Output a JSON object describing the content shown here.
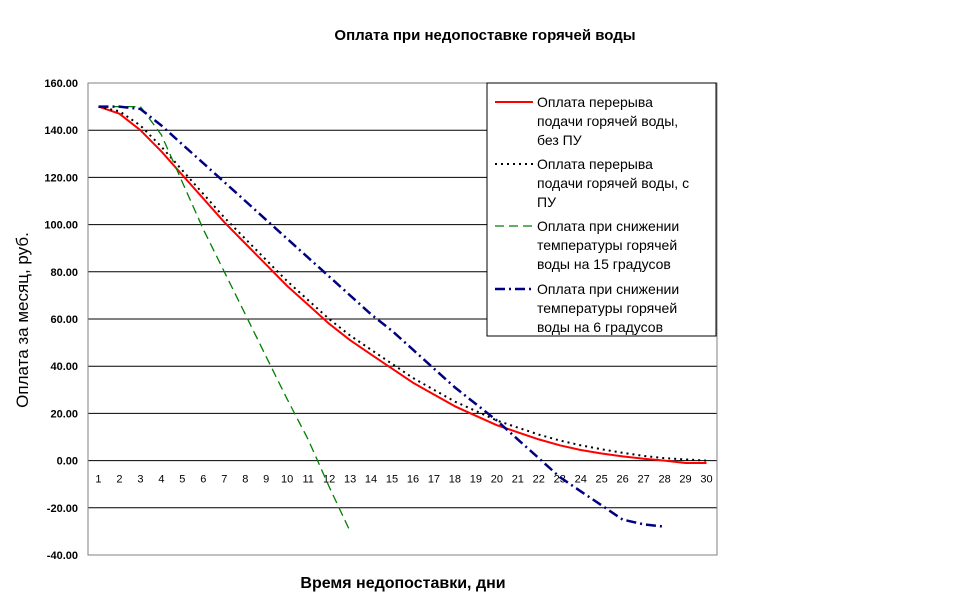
{
  "chart_data": {
    "type": "line",
    "title": "Оплата при недопоставке горячей воды",
    "xlabel": "Время недопоставки, дни",
    "ylabel": "Оплата за месяц, руб.",
    "ylim": [
      -40,
      160
    ],
    "ytick_step": 20,
    "ytick_labels": [
      "-40.00",
      "-20.00",
      "0.00",
      "20.00",
      "40.00",
      "60.00",
      "80.00",
      "100.00",
      "120.00",
      "140.00",
      "160.00"
    ],
    "x": [
      1,
      2,
      3,
      4,
      5,
      6,
      7,
      8,
      9,
      10,
      11,
      12,
      13,
      14,
      15,
      16,
      17,
      18,
      19,
      20,
      21,
      22,
      23,
      24,
      25,
      26,
      27,
      28,
      29,
      30
    ],
    "grid": "horizontal",
    "legend_position": "top-right",
    "series": [
      {
        "name": "Оплата перерыва подачи горячей воды, без ПУ",
        "color": "#ff0000",
        "style": "solid",
        "x": [
          1,
          2,
          3,
          4,
          5,
          6,
          7,
          8,
          9,
          10,
          11,
          12,
          13,
          14,
          15,
          16,
          17,
          18,
          19,
          20,
          21,
          22,
          23,
          24,
          25,
          26,
          27,
          28,
          29,
          30
        ],
        "values": [
          150,
          147,
          140,
          131,
          121,
          111,
          101,
          92,
          83,
          74,
          66,
          58,
          51,
          45,
          39,
          33,
          28,
          23,
          19,
          15,
          12,
          9,
          6.5,
          4.5,
          3,
          1.8,
          0.8,
          0,
          -1,
          -1
        ]
      },
      {
        "name": "Оплата перерыва подачи горячей воды, с ПУ",
        "color": "#000000",
        "style": "dotted",
        "x": [
          1,
          2,
          3,
          4,
          5,
          6,
          7,
          8,
          9,
          10,
          11,
          12,
          13,
          14,
          15,
          16,
          17,
          18,
          19,
          20,
          21,
          22,
          23,
          24,
          25,
          26,
          27,
          28,
          29,
          30
        ],
        "values": [
          150,
          148,
          142,
          133,
          123,
          113,
          103,
          94,
          85,
          76,
          68,
          60,
          53,
          47,
          41,
          35,
          30,
          25,
          21,
          17,
          14,
          11,
          8.5,
          6.5,
          4.8,
          3.3,
          2,
          1,
          0.5,
          0
        ]
      },
      {
        "name": "Оплата при снижении температуры горячей воды на 15 градусов",
        "color": "#008000",
        "style": "dashed",
        "x": [
          1,
          2,
          3,
          4,
          5,
          6,
          7,
          8,
          9,
          10,
          11,
          12,
          13
        ],
        "values": [
          150,
          150,
          150,
          138,
          118,
          98,
          80,
          62,
          44,
          26,
          9,
          -11,
          -30
        ]
      },
      {
        "name": "Оплата при снижении температуры горячей воды на 6 градусов",
        "color": "#000080",
        "style": "dashdot",
        "x": [
          1,
          2,
          3,
          4,
          5,
          6,
          7,
          8,
          9,
          10,
          11,
          12,
          13,
          14,
          15,
          16,
          17,
          18,
          19,
          20,
          21,
          22,
          23,
          24,
          25,
          26,
          27,
          28
        ],
        "values": [
          150,
          150,
          149,
          142,
          134,
          126,
          118,
          110,
          102,
          94,
          86,
          78,
          70,
          62,
          55,
          47,
          39,
          31,
          24,
          17,
          9,
          1,
          -7,
          -13,
          -19,
          -25,
          -27,
          -28
        ]
      }
    ]
  }
}
